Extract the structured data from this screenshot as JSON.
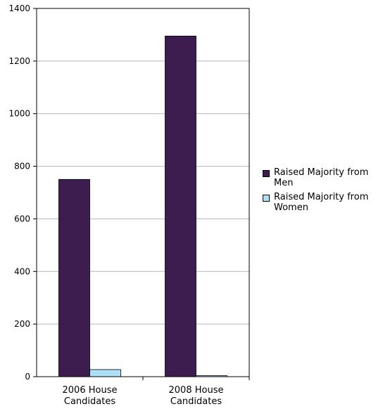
{
  "chart_data": {
    "type": "bar",
    "title": "",
    "xlabel": "",
    "ylabel": "",
    "categories": [
      "2006 House Candidates",
      "2008 House Candidates"
    ],
    "category_lines": [
      [
        "2006 House",
        "Candidates"
      ],
      [
        "2008 House",
        "Candidates"
      ]
    ],
    "series": [
      {
        "name": "Raised Majority from Men",
        "values": [
          750,
          1295
        ],
        "color": "#3d1c4f"
      },
      {
        "name": "Raised Majority from Women",
        "values": [
          27,
          4
        ],
        "color": "#aee0f5"
      }
    ],
    "ylim": [
      0,
      1400
    ],
    "yticks": [
      0,
      200,
      400,
      600,
      800,
      1000,
      1200,
      1400
    ],
    "grid": true,
    "legend_position": "right"
  }
}
